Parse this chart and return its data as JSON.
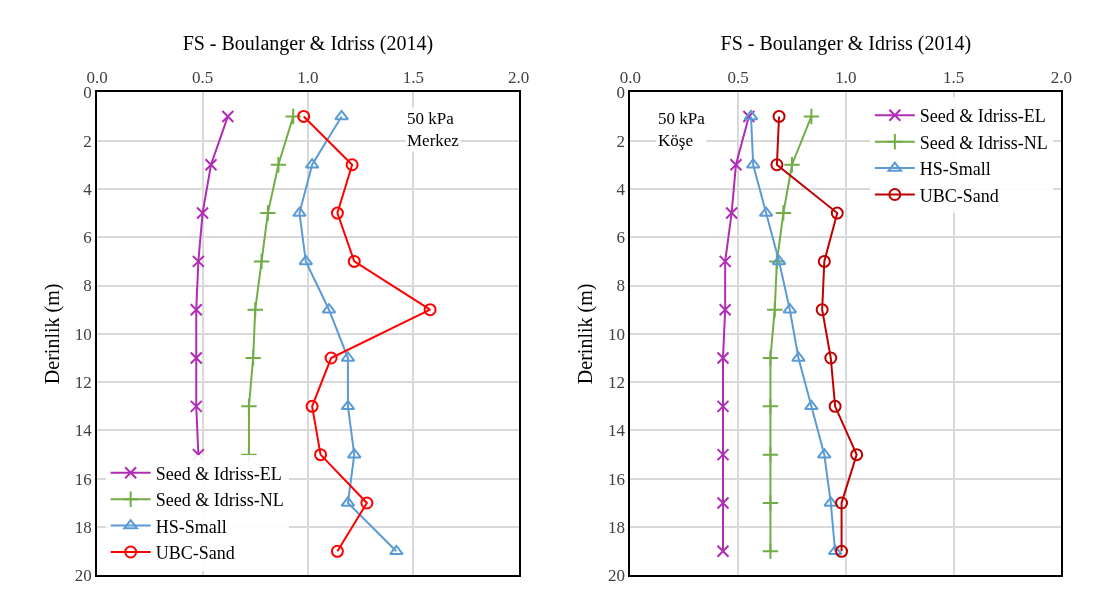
{
  "chart_data": [
    {
      "type": "line",
      "xlabel": "FS - Boulanger & Idriss (2014)",
      "ylabel": "Derinlik (m)",
      "annotations": [
        "50 kPa\nMerkez"
      ],
      "legend": "bottom left",
      "grid": true,
      "xlim": [
        0,
        2
      ],
      "xticks": [
        {
          "value": 0,
          "label": "0.0"
        },
        {
          "value": 0.5,
          "label": "0.5"
        },
        {
          "value": 1,
          "label": "1.0"
        },
        {
          "value": 1.5,
          "label": "1.5"
        },
        {
          "value": 2,
          "label": "2.0"
        }
      ],
      "ylim": [
        20,
        0
      ],
      "yticks": [
        0,
        2,
        4,
        6,
        8,
        10,
        12,
        14,
        16,
        18,
        20
      ],
      "series": [
        {
          "name": "Seed & Idriss-EL",
          "color": "#b02cb4",
          "marker": "cross",
          "x": [
            0.62,
            0.54,
            0.5,
            0.48,
            0.47,
            0.47,
            0.47,
            0.48
          ],
          "values": [
            1,
            3,
            5,
            7,
            9,
            11,
            13,
            15
          ]
        },
        {
          "name": "Seed & Idriss-NL",
          "color": "#70ad47",
          "marker": "cross",
          "x": [
            0.93,
            0.86,
            0.81,
            0.78,
            0.75,
            0.74,
            0.72,
            0.72
          ],
          "values": [
            1,
            3,
            5,
            7,
            9,
            11,
            13,
            15
          ]
        },
        {
          "name": "HS-Small",
          "color": "#5b9bd5",
          "marker": "triangle",
          "x": [
            1.16,
            1.02,
            0.96,
            0.99,
            1.1,
            1.19,
            1.19,
            1.22,
            1.19,
            1.42
          ],
          "values": [
            1,
            3,
            5,
            7,
            9,
            11,
            13,
            15,
            17,
            19
          ]
        },
        {
          "name": "UBC-Sand",
          "color": "#ff0000",
          "marker": "circle",
          "x": [
            0.98,
            1.21,
            1.14,
            1.22,
            1.58,
            1.11,
            1.02,
            1.06,
            1.28,
            1.14
          ],
          "values": [
            1,
            3,
            5,
            7,
            9,
            11,
            13,
            15,
            17,
            19
          ]
        }
      ]
    },
    {
      "type": "line",
      "xlabel": "FS - Boulanger & Idriss (2014)",
      "ylabel": "Derinlik (m)",
      "annotations": [
        "50 kPa\nKöşe"
      ],
      "legend": "top right",
      "grid": true,
      "xlim": [
        0,
        2
      ],
      "xticks": [
        {
          "value": 0,
          "label": "0.0"
        },
        {
          "value": 0.5,
          "label": "0.5"
        },
        {
          "value": 1,
          "label": "1.0"
        },
        {
          "value": 1.5,
          "label": "1.5"
        },
        {
          "value": 2,
          "label": "2.0"
        }
      ],
      "ylim": [
        20,
        0
      ],
      "yticks": [
        0,
        2,
        4,
        6,
        8,
        10,
        12,
        14,
        16,
        18,
        20
      ],
      "series": [
        {
          "name": "Seed & Idriss-EL",
          "color": "#b02cb4",
          "marker": "cross",
          "x": [
            0.55,
            0.49,
            0.47,
            0.44,
            0.44,
            0.43,
            0.43,
            0.43,
            0.43,
            0.43
          ],
          "values": [
            1,
            3,
            5,
            7,
            9,
            11,
            13,
            15,
            17,
            19
          ]
        },
        {
          "name": "Seed & Idriss-NL",
          "color": "#70ad47",
          "marker": "cross",
          "x": [
            0.84,
            0.75,
            0.71,
            0.68,
            0.67,
            0.65,
            0.65,
            0.65,
            0.65,
            0.65
          ],
          "values": [
            1,
            3,
            5,
            7,
            9,
            11,
            13,
            15,
            17,
            19
          ]
        },
        {
          "name": "HS-Small",
          "color": "#5b9bd5",
          "marker": "triangle",
          "x": [
            0.56,
            0.57,
            0.63,
            0.69,
            0.74,
            0.78,
            0.84,
            0.9,
            0.93,
            0.95
          ],
          "values": [
            1,
            3,
            5,
            7,
            9,
            11,
            13,
            15,
            17,
            19
          ]
        },
        {
          "name": "UBC-Sand",
          "color": "#c00000",
          "marker": "circle",
          "x": [
            0.69,
            0.68,
            0.96,
            0.9,
            0.89,
            0.93,
            0.95,
            1.05,
            0.98,
            0.98
          ],
          "values": [
            1,
            3,
            5,
            7,
            9,
            11,
            13,
            15,
            17,
            19
          ]
        }
      ]
    }
  ]
}
